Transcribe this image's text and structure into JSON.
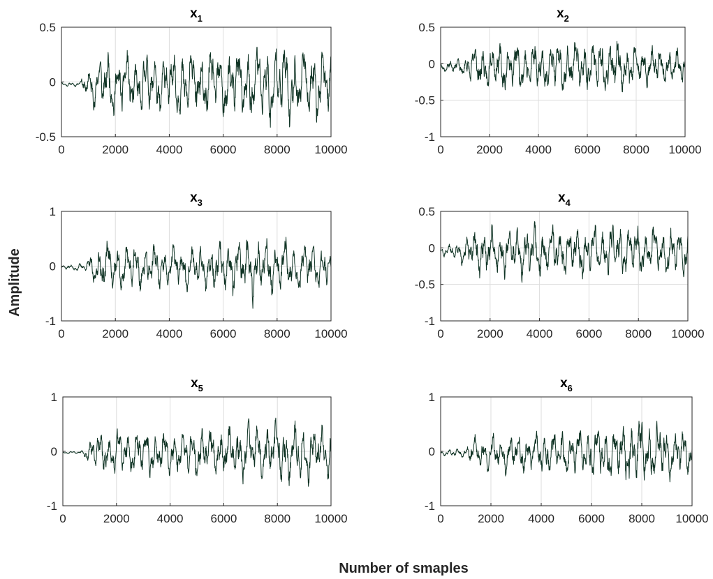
{
  "figure": {
    "ylabel": "Amplitude",
    "xlabel": "Number of smaples"
  },
  "colors": {
    "line": "#0f3324",
    "axis": "#262626",
    "grid": "#dcdcdc"
  },
  "chart_data": [
    {
      "type": "line",
      "name": "x1",
      "title_main": "x",
      "title_sub": "1",
      "xlim": [
        0,
        10000
      ],
      "ylim": [
        -0.5,
        0.5
      ],
      "xticks": [
        0,
        2000,
        4000,
        6000,
        8000,
        10000
      ],
      "yticks": [
        -0.5,
        0,
        0.5
      ],
      "grid": true,
      "envelope": [
        [
          0,
          0.02
        ],
        [
          700,
          0.03
        ],
        [
          900,
          0.2
        ],
        [
          1500,
          0.35
        ],
        [
          2000,
          0.35
        ],
        [
          3000,
          0.35
        ],
        [
          5000,
          0.4
        ],
        [
          7000,
          0.45
        ],
        [
          8000,
          0.48
        ],
        [
          9000,
          0.45
        ],
        [
          10000,
          0.42
        ]
      ],
      "seed": 11,
      "bias": -0.02
    },
    {
      "type": "line",
      "name": "x2",
      "title_main": "x",
      "title_sub": "2",
      "xlim": [
        0,
        10000
      ],
      "ylim": [
        -1,
        0.5
      ],
      "xticks": [
        0,
        2000,
        4000,
        6000,
        8000,
        10000
      ],
      "yticks": [
        -1,
        -0.5,
        0,
        0.5
      ],
      "grid": true,
      "envelope": [
        [
          0,
          0.08
        ],
        [
          900,
          0.15
        ],
        [
          1500,
          0.42
        ],
        [
          3000,
          0.4
        ],
        [
          5000,
          0.42
        ],
        [
          7000,
          0.5
        ],
        [
          8000,
          0.35
        ],
        [
          10000,
          0.3
        ]
      ],
      "seed": 23,
      "bias": -0.04
    },
    {
      "type": "line",
      "name": "x3",
      "title_main": "x",
      "title_sub": "3",
      "xlim": [
        0,
        10000
      ],
      "ylim": [
        -1,
        1
      ],
      "xticks": [
        0,
        2000,
        4000,
        6000,
        8000,
        10000
      ],
      "yticks": [
        -1,
        0,
        1
      ],
      "grid": true,
      "envelope": [
        [
          0,
          0.05
        ],
        [
          900,
          0.1
        ],
        [
          1500,
          0.65
        ],
        [
          3000,
          0.5
        ],
        [
          5000,
          0.5
        ],
        [
          7200,
          0.75
        ],
        [
          9000,
          0.55
        ],
        [
          10000,
          0.5
        ]
      ],
      "seed": 37,
      "bias": -0.02
    },
    {
      "type": "line",
      "name": "x4",
      "title_main": "x",
      "title_sub": "4",
      "xlim": [
        0,
        10000
      ],
      "ylim": [
        -1,
        0.5
      ],
      "xticks": [
        0,
        2000,
        4000,
        6000,
        8000,
        10000
      ],
      "yticks": [
        -1,
        -0.5,
        0,
        0.5
      ],
      "grid": true,
      "envelope": [
        [
          0,
          0.08
        ],
        [
          900,
          0.2
        ],
        [
          1500,
          0.4
        ],
        [
          3000,
          0.42
        ],
        [
          5000,
          0.45
        ],
        [
          7500,
          0.45
        ],
        [
          8500,
          0.45
        ],
        [
          10000,
          0.38
        ]
      ],
      "seed": 51,
      "bias": -0.05
    },
    {
      "type": "line",
      "name": "x5",
      "title_main": "x",
      "title_sub": "5",
      "xlim": [
        0,
        10000
      ],
      "ylim": [
        -1,
        1
      ],
      "xticks": [
        0,
        2000,
        4000,
        6000,
        8000,
        10000
      ],
      "yticks": [
        -1,
        0,
        1
      ],
      "grid": true,
      "envelope": [
        [
          0,
          0.02
        ],
        [
          700,
          0.04
        ],
        [
          1000,
          0.3
        ],
        [
          1500,
          0.55
        ],
        [
          3000,
          0.5
        ],
        [
          5000,
          0.55
        ],
        [
          7000,
          0.65
        ],
        [
          8500,
          0.72
        ],
        [
          10000,
          0.6
        ]
      ],
      "seed": 67,
      "bias": -0.02
    },
    {
      "type": "line",
      "name": "x6",
      "title_main": "x",
      "title_sub": "6",
      "xlim": [
        0,
        10000
      ],
      "ylim": [
        -1,
        1
      ],
      "xticks": [
        0,
        2000,
        4000,
        6000,
        8000,
        10000
      ],
      "yticks": [
        -1,
        0,
        1
      ],
      "grid": true,
      "envelope": [
        [
          0,
          0.05
        ],
        [
          900,
          0.12
        ],
        [
          1500,
          0.45
        ],
        [
          3000,
          0.45
        ],
        [
          5000,
          0.5
        ],
        [
          7000,
          0.65
        ],
        [
          7800,
          0.8
        ],
        [
          10000,
          0.5
        ]
      ],
      "seed": 83,
      "bias": -0.03
    }
  ]
}
